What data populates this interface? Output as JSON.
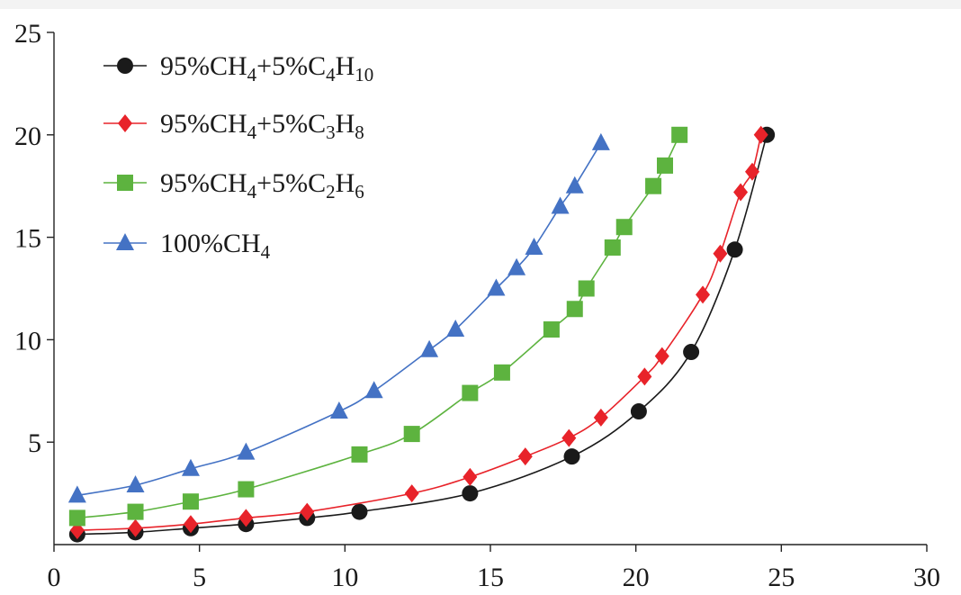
{
  "chart_data": {
    "type": "line",
    "title": "",
    "xlabel": "",
    "ylabel": "",
    "xlim": [
      0,
      30
    ],
    "ylim": [
      0,
      25
    ],
    "x_ticks": [
      "0",
      "5",
      "10",
      "15",
      "20",
      "25",
      "30"
    ],
    "y_ticks": [
      "5",
      "10",
      "15",
      "20",
      "25"
    ],
    "legend_position": "top-left",
    "series": [
      {
        "name": "95%CH4+5%C4H10",
        "legend_parts": [
          [
            "95%CH",
            ""
          ],
          [
            "4",
            "sub"
          ],
          [
            "+5%C",
            ""
          ],
          [
            "4",
            "sub"
          ],
          [
            "H",
            ""
          ],
          [
            "10",
            "sub"
          ]
        ],
        "color": "#1a1a1a",
        "marker": "circle",
        "points": [
          [
            0.8,
            0.5
          ],
          [
            2.8,
            0.6
          ],
          [
            4.7,
            0.8
          ],
          [
            6.6,
            1.0
          ],
          [
            8.7,
            1.3
          ],
          [
            10.5,
            1.6
          ],
          [
            14.3,
            2.5
          ],
          [
            17.8,
            4.3
          ],
          [
            20.1,
            6.5
          ],
          [
            21.9,
            9.4
          ],
          [
            23.4,
            14.4
          ],
          [
            24.5,
            20.0
          ]
        ]
      },
      {
        "name": "95%CH4+5%C3H8",
        "legend_parts": [
          [
            "95%CH",
            ""
          ],
          [
            "4",
            "sub"
          ],
          [
            "+5%C",
            ""
          ],
          [
            "3",
            "sub"
          ],
          [
            "H",
            ""
          ],
          [
            "8",
            "sub"
          ]
        ],
        "color": "#e8232a",
        "marker": "diamond",
        "points": [
          [
            0.8,
            0.7
          ],
          [
            2.8,
            0.8
          ],
          [
            4.7,
            1.0
          ],
          [
            6.6,
            1.3
          ],
          [
            8.7,
            1.6
          ],
          [
            12.3,
            2.5
          ],
          [
            14.3,
            3.3
          ],
          [
            16.2,
            4.3
          ],
          [
            17.7,
            5.2
          ],
          [
            18.8,
            6.2
          ],
          [
            20.3,
            8.2
          ],
          [
            20.9,
            9.2
          ],
          [
            22.3,
            12.2
          ],
          [
            22.9,
            14.2
          ],
          [
            23.6,
            17.2
          ],
          [
            24.0,
            18.2
          ],
          [
            24.3,
            20.0
          ]
        ]
      },
      {
        "name": "95%CH4+5%C2H6",
        "legend_parts": [
          [
            "95%CH",
            ""
          ],
          [
            "4",
            "sub"
          ],
          [
            "+5%C",
            ""
          ],
          [
            "2",
            "sub"
          ],
          [
            "H",
            ""
          ],
          [
            "6",
            "sub"
          ]
        ],
        "color": "#5db33f",
        "marker": "square",
        "points": [
          [
            0.8,
            1.3
          ],
          [
            2.8,
            1.6
          ],
          [
            4.7,
            2.1
          ],
          [
            6.6,
            2.7
          ],
          [
            10.5,
            4.4
          ],
          [
            12.3,
            5.4
          ],
          [
            14.3,
            7.4
          ],
          [
            15.4,
            8.4
          ],
          [
            17.1,
            10.5
          ],
          [
            17.9,
            11.5
          ],
          [
            18.3,
            12.5
          ],
          [
            19.2,
            14.5
          ],
          [
            19.6,
            15.5
          ],
          [
            20.6,
            17.5
          ],
          [
            21.0,
            18.5
          ],
          [
            21.5,
            20.0
          ]
        ]
      },
      {
        "name": "100%CH4",
        "legend_parts": [
          [
            "100%CH",
            ""
          ],
          [
            "4",
            "sub"
          ]
        ],
        "color": "#4472c4",
        "marker": "triangle",
        "points": [
          [
            0.8,
            2.4
          ],
          [
            2.8,
            2.9
          ],
          [
            4.7,
            3.7
          ],
          [
            6.6,
            4.5
          ],
          [
            9.8,
            6.5
          ],
          [
            11.0,
            7.5
          ],
          [
            12.9,
            9.5
          ],
          [
            13.8,
            10.5
          ],
          [
            15.2,
            12.5
          ],
          [
            15.9,
            13.5
          ],
          [
            16.5,
            14.5
          ],
          [
            17.4,
            16.5
          ],
          [
            17.9,
            17.5
          ],
          [
            18.8,
            19.6
          ]
        ]
      }
    ]
  }
}
